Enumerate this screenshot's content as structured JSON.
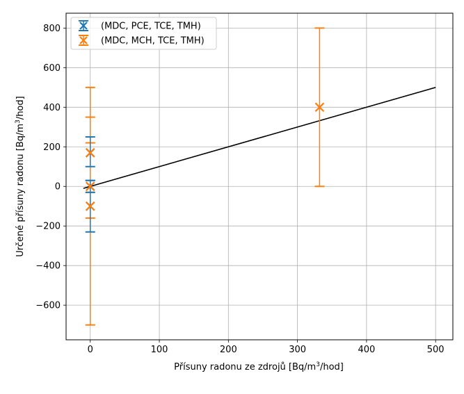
{
  "chart_data": {
    "type": "scatter",
    "xlabel_main": "Přísuny radonu ze zdrojů [Bq/m",
    "xlabel_sup": "3",
    "xlabel_tail": "/hod]",
    "ylabel_main": "Určené přísuny radonu [Bq/m",
    "ylabel_sup": "3",
    "ylabel_tail": "/hod]",
    "xlim": [
      -35,
      525
    ],
    "ylim": [
      -775,
      875
    ],
    "xticks": [
      0,
      100,
      200,
      300,
      400,
      500
    ],
    "xtick_labels": [
      "0",
      "100",
      "200",
      "300",
      "400",
      "500"
    ],
    "yticks": [
      -600,
      -400,
      -200,
      0,
      200,
      400,
      600,
      800
    ],
    "ytick_labels": [
      "−600",
      "−400",
      "−200",
      "0",
      "200",
      "400",
      "600",
      "800"
    ],
    "grid": true,
    "legend_position": "top-left",
    "reference_line": {
      "x": [
        -10,
        500
      ],
      "y": [
        -10,
        500
      ],
      "color": "#000000"
    },
    "series": [
      {
        "name": "(MDC, PCE, TCE, TMH)",
        "color": "#1f77b4",
        "marker": "x",
        "points": [
          {
            "x": 0,
            "y": 170,
            "ylow": 100,
            "yhigh": 250
          },
          {
            "x": 0,
            "y": 0,
            "ylow": -30,
            "yhigh": 30
          },
          {
            "x": 0,
            "y": -100,
            "ylow": -230,
            "yhigh": 30
          }
        ]
      },
      {
        "name": "(MDC, MCH, TCE, TMH)",
        "color": "#ff7f0e",
        "marker": "x",
        "points": [
          {
            "x": 0,
            "y": 170,
            "ylow": -700,
            "yhigh": 500
          },
          {
            "x": 0,
            "y": 0,
            "ylow": -30,
            "yhigh": 350
          },
          {
            "x": 0,
            "y": -100,
            "ylow": -160,
            "yhigh": 220
          },
          {
            "x": 332,
            "y": 400,
            "ylow": 0,
            "yhigh": 800
          }
        ]
      }
    ]
  }
}
